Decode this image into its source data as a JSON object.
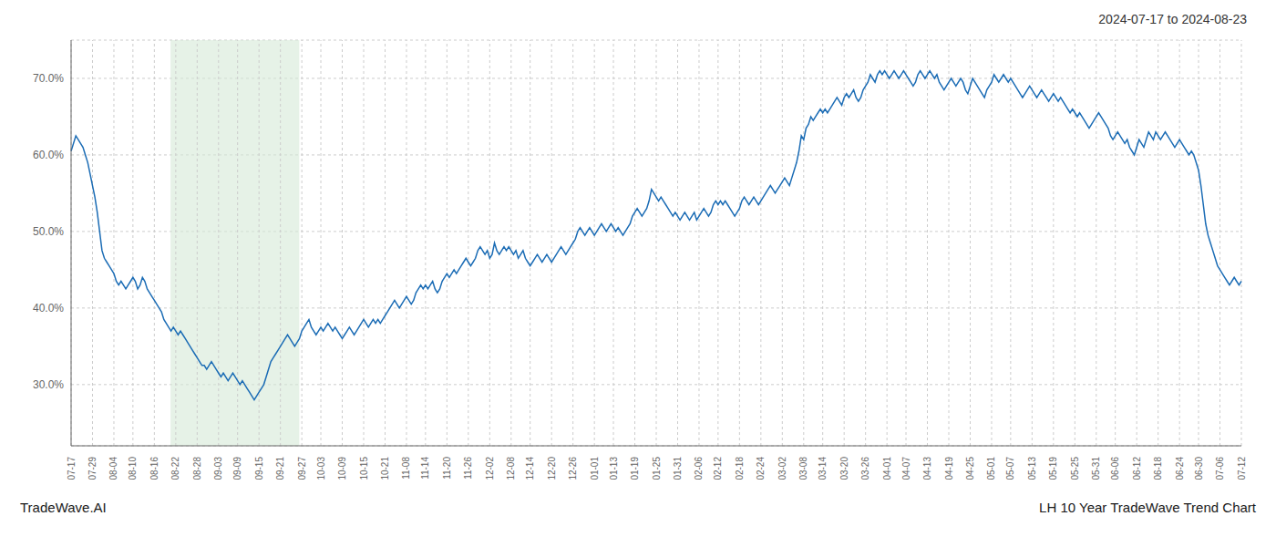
{
  "chart_data": {
    "type": "line",
    "title": "LH 10 Year TradeWave Trend Chart",
    "subtitle": "2024-07-17 to 2024-08-23",
    "annotations": [
      "TradeWave.AI"
    ],
    "color": "#1b6cb5",
    "grid": true,
    "ylim": [
      22.0,
      75.0
    ],
    "yticks": [
      {
        "value": 30.0,
        "label": "30.0%"
      },
      {
        "value": 40.0,
        "label": "40.0%"
      },
      {
        "value": 50.0,
        "label": "50.0%"
      },
      {
        "value": 60.0,
        "label": "60.0%"
      },
      {
        "value": 70.0,
        "label": "70.0%"
      }
    ],
    "shaded_region": {
      "x": [
        41.82,
        95.94
      ],
      "color": "#d6ead7"
    },
    "categories": [
      "07-17",
      null,
      null,
      null,
      null,
      null,
      null,
      null,
      null,
      "07-29",
      null,
      null,
      null,
      null,
      null,
      null,
      null,
      null,
      "08-04",
      null,
      null,
      null,
      null,
      null,
      null,
      null,
      "08-10",
      null,
      null,
      null,
      null,
      null,
      null,
      null,
      null,
      "08-16",
      null,
      null,
      null,
      null,
      null,
      null,
      null,
      null,
      "08-22",
      null,
      null,
      null,
      null,
      null,
      null,
      null,
      null,
      "08-28",
      null,
      null,
      null,
      null,
      null,
      null,
      null,
      null,
      "09-03",
      null,
      null,
      null,
      null,
      null,
      null,
      null,
      "09-09",
      null,
      null,
      null,
      null,
      null,
      null,
      null,
      null,
      "09-15",
      null,
      null,
      null,
      null,
      null,
      null,
      null,
      null,
      "09-21",
      null,
      null,
      null,
      null,
      null,
      null,
      null,
      null,
      "09-27",
      null,
      null,
      null,
      null,
      null,
      null,
      null,
      "10-03",
      null,
      null,
      null,
      null,
      null,
      null,
      null,
      null,
      "10-09",
      null,
      null,
      null,
      null,
      null,
      null,
      null,
      null,
      "10-15",
      null,
      null,
      null,
      null,
      null,
      null,
      null,
      null,
      "10-21",
      null,
      null,
      null,
      null,
      null,
      null,
      null,
      null,
      "11-08",
      null,
      null,
      null,
      null,
      null,
      null,
      null,
      "11-14",
      null,
      null,
      null,
      null,
      null,
      null,
      null,
      null,
      "11-20",
      null,
      null,
      null,
      null,
      null,
      null,
      null,
      null,
      "11-26",
      null,
      null,
      null,
      null,
      null,
      null,
      null,
      null,
      "12-02",
      null,
      null,
      null,
      null,
      null,
      null,
      null,
      null,
      "12-08",
      null,
      null,
      null,
      null,
      null,
      null,
      null,
      "12-14",
      null,
      null,
      null,
      null,
      null,
      null,
      null,
      null,
      "12-20",
      null,
      null,
      null,
      null,
      null,
      null,
      null,
      null,
      "12-26",
      null,
      null,
      null,
      null,
      null,
      null,
      null,
      null,
      "01-01",
      null,
      null,
      null,
      null,
      null,
      null,
      null,
      "01-13",
      null,
      null,
      null,
      null,
      null,
      null,
      null,
      null,
      "01-19",
      null,
      null,
      null,
      null,
      null,
      null,
      null,
      null,
      "01-25",
      null,
      null,
      null,
      null,
      null,
      null,
      null,
      null,
      "01-31",
      null,
      null,
      null,
      null,
      null,
      null,
      null,
      null,
      "02-06",
      null,
      null,
      null,
      null,
      null,
      null,
      null,
      "02-12",
      null,
      null,
      null,
      null,
      null,
      null,
      null,
      null,
      "02-18",
      null,
      null,
      null,
      null,
      null,
      null,
      null,
      null,
      "02-24",
      null,
      null,
      null,
      null,
      null,
      null,
      null,
      null,
      "03-02",
      null,
      null,
      null,
      null,
      null,
      null,
      null,
      null,
      "03-08",
      null,
      null,
      null,
      null,
      null,
      null,
      null,
      "03-14",
      null,
      null,
      null,
      null,
      null,
      null,
      null,
      null,
      "03-20",
      null,
      null,
      null,
      null,
      null,
      null,
      null,
      null,
      "03-26",
      null,
      null,
      null,
      null,
      null,
      null,
      null,
      null,
      "04-01",
      null,
      null,
      null,
      null,
      null,
      null,
      null,
      "04-07",
      null,
      null,
      null,
      null,
      null,
      null,
      null,
      null,
      "04-13",
      null,
      null,
      null,
      null,
      null,
      null,
      null,
      null,
      "04-19",
      null,
      null,
      null,
      null,
      null,
      null,
      null,
      null,
      "04-25",
      null,
      null,
      null,
      null,
      null,
      null,
      null,
      null,
      "05-01",
      null,
      null,
      null,
      null,
      null,
      null,
      null,
      "05-07",
      null,
      null,
      null,
      null,
      null,
      null,
      null,
      null,
      "05-13",
      null,
      null,
      null,
      null,
      null,
      null,
      null,
      null,
      "05-19",
      null,
      null,
      null,
      null,
      null,
      null,
      null,
      null,
      "05-25",
      null,
      null,
      null,
      null,
      null,
      null,
      null,
      null,
      "05-31",
      null,
      null,
      null,
      null,
      null,
      null,
      null,
      "06-06",
      null,
      null,
      null,
      null,
      null,
      null,
      null,
      null,
      "06-12",
      null,
      null,
      null,
      null,
      null,
      null,
      null,
      null,
      "06-18",
      null,
      null,
      null,
      null,
      null,
      null,
      null,
      null,
      "06-24",
      null,
      null,
      null,
      null,
      null,
      null,
      null,
      "06-30",
      null,
      null,
      null,
      null,
      null,
      null,
      null,
      null,
      "07-06",
      null,
      null,
      null,
      null,
      null,
      null,
      null,
      null,
      "07-12"
    ],
    "values": [
      60.5,
      61.5,
      62.5,
      62.0,
      61.5,
      61.0,
      60.0,
      59.0,
      57.5,
      56.0,
      54.5,
      52.5,
      50.0,
      47.5,
      46.5,
      46.0,
      45.5,
      45.0,
      44.5,
      43.5,
      43.0,
      43.5,
      43.0,
      42.5,
      43.0,
      43.5,
      44.0,
      43.5,
      42.5,
      43.0,
      44.0,
      43.5,
      42.5,
      42.0,
      41.5,
      41.0,
      40.5,
      40.0,
      39.5,
      38.5,
      38.0,
      37.5,
      37.0,
      37.5,
      37.0,
      36.5,
      37.0,
      36.5,
      36.0,
      35.5,
      35.0,
      34.5,
      34.0,
      33.5,
      33.0,
      32.5,
      32.5,
      32.0,
      32.5,
      33.0,
      32.5,
      32.0,
      31.5,
      31.0,
      31.5,
      31.0,
      30.5,
      31.0,
      31.5,
      31.0,
      30.5,
      30.0,
      30.5,
      30.0,
      29.5,
      29.0,
      28.5,
      28.0,
      28.5,
      29.0,
      29.5,
      30.0,
      31.0,
      32.0,
      33.0,
      33.5,
      34.0,
      34.5,
      35.0,
      35.5,
      36.0,
      36.5,
      36.0,
      35.5,
      35.0,
      35.5,
      36.0,
      37.0,
      37.5,
      38.0,
      38.5,
      37.5,
      37.0,
      36.5,
      37.0,
      37.5,
      37.0,
      37.5,
      38.0,
      37.5,
      37.0,
      37.5,
      37.0,
      36.5,
      36.0,
      36.5,
      37.0,
      37.5,
      37.0,
      36.5,
      37.0,
      37.5,
      38.0,
      38.5,
      38.0,
      37.5,
      38.0,
      38.5,
      38.0,
      38.5,
      38.0,
      38.5,
      39.0,
      39.5,
      40.0,
      40.5,
      41.0,
      40.5,
      40.0,
      40.5,
      41.0,
      41.5,
      41.0,
      40.5,
      41.0,
      42.0,
      42.5,
      43.0,
      42.5,
      43.0,
      42.5,
      43.0,
      43.5,
      42.5,
      42.0,
      42.5,
      43.5,
      44.0,
      44.5,
      44.0,
      44.5,
      45.0,
      44.5,
      45.0,
      45.5,
      46.0,
      46.5,
      46.0,
      45.5,
      46.0,
      46.5,
      47.5,
      48.0,
      47.5,
      47.0,
      47.5,
      46.5,
      47.0,
      48.5,
      47.5,
      47.0,
      47.5,
      48.0,
      47.5,
      48.0,
      47.5,
      47.0,
      47.5,
      46.5,
      47.0,
      47.5,
      46.5,
      46.0,
      45.5,
      46.0,
      46.5,
      47.0,
      46.5,
      46.0,
      46.5,
      47.0,
      46.5,
      46.0,
      46.5,
      47.0,
      47.5,
      48.0,
      47.5,
      47.0,
      47.5,
      48.0,
      48.5,
      49.0,
      50.0,
      50.5,
      50.0,
      49.5,
      50.0,
      50.5,
      50.0,
      49.5,
      50.0,
      50.5,
      51.0,
      50.5,
      50.0,
      50.5,
      51.0,
      50.5,
      50.0,
      50.5,
      50.0,
      49.5,
      50.0,
      50.5,
      51.0,
      52.0,
      52.5,
      53.0,
      52.5,
      52.0,
      52.5,
      53.0,
      54.0,
      55.5,
      55.0,
      54.5,
      54.0,
      54.5,
      54.0,
      53.5,
      53.0,
      52.5,
      52.0,
      52.5,
      52.0,
      51.5,
      52.0,
      52.5,
      52.0,
      51.5,
      52.0,
      52.5,
      51.5,
      52.0,
      52.5,
      53.0,
      52.5,
      52.0,
      52.5,
      53.5,
      54.0,
      53.5,
      54.0,
      53.5,
      54.0,
      53.5,
      53.0,
      52.5,
      52.0,
      52.5,
      53.0,
      54.0,
      54.5,
      54.0,
      53.5,
      54.0,
      54.5,
      54.0,
      53.5,
      54.0,
      54.5,
      55.0,
      55.5,
      56.0,
      55.5,
      55.0,
      55.5,
      56.0,
      56.5,
      57.0,
      56.5,
      56.0,
      57.0,
      58.0,
      59.0,
      60.5,
      62.5,
      62.0,
      63.5,
      64.0,
      65.0,
      64.5,
      65.0,
      65.5,
      66.0,
      65.5,
      66.0,
      65.5,
      66.0,
      66.5,
      67.0,
      67.5,
      67.0,
      66.5,
      67.5,
      68.0,
      67.5,
      68.0,
      68.5,
      67.5,
      67.0,
      67.5,
      68.5,
      69.0,
      69.5,
      70.5,
      70.0,
      69.5,
      70.5,
      71.0,
      70.5,
      71.0,
      70.5,
      70.0,
      70.5,
      71.0,
      70.5,
      70.0,
      70.5,
      71.0,
      70.5,
      70.0,
      69.5,
      69.0,
      69.5,
      70.5,
      71.0,
      70.5,
      70.0,
      70.5,
      71.0,
      70.5,
      70.0,
      70.5,
      69.5,
      69.0,
      68.5,
      69.0,
      69.5,
      70.0,
      69.5,
      69.0,
      69.5,
      70.0,
      69.5,
      68.5,
      68.0,
      69.0,
      70.0,
      69.5,
      69.0,
      68.5,
      68.0,
      67.5,
      68.5,
      69.0,
      69.5,
      70.5,
      70.0,
      69.5,
      70.0,
      70.5,
      70.0,
      69.5,
      70.0,
      69.5,
      69.0,
      68.5,
      68.0,
      67.5,
      68.0,
      68.5,
      69.0,
      68.5,
      68.0,
      67.5,
      68.0,
      68.5,
      68.0,
      67.5,
      67.0,
      67.5,
      68.0,
      67.5,
      67.0,
      67.5,
      67.0,
      66.5,
      66.0,
      65.5,
      66.0,
      65.5,
      65.0,
      65.5,
      65.0,
      64.5,
      64.0,
      63.5,
      64.0,
      64.5,
      65.0,
      65.5,
      65.0,
      64.5,
      64.0,
      63.5,
      62.5,
      62.0,
      62.5,
      63.0,
      62.5,
      62.0,
      61.5,
      62.0,
      61.0,
      60.5,
      60.0,
      61.0,
      62.0,
      61.5,
      61.0,
      62.0,
      63.0,
      62.5,
      62.0,
      63.0,
      62.5,
      62.0,
      62.5,
      63.0,
      62.5,
      62.0,
      61.5,
      61.0,
      61.5,
      62.0,
      61.5,
      61.0,
      60.5,
      60.0,
      60.5,
      60.0,
      59.0,
      58.0,
      56.0,
      53.5,
      51.0,
      49.5,
      48.5,
      47.5,
      46.5,
      45.5,
      45.0,
      44.5,
      44.0,
      43.5,
      43.0,
      43.5,
      44.0,
      43.5,
      43.0,
      43.5
    ]
  }
}
